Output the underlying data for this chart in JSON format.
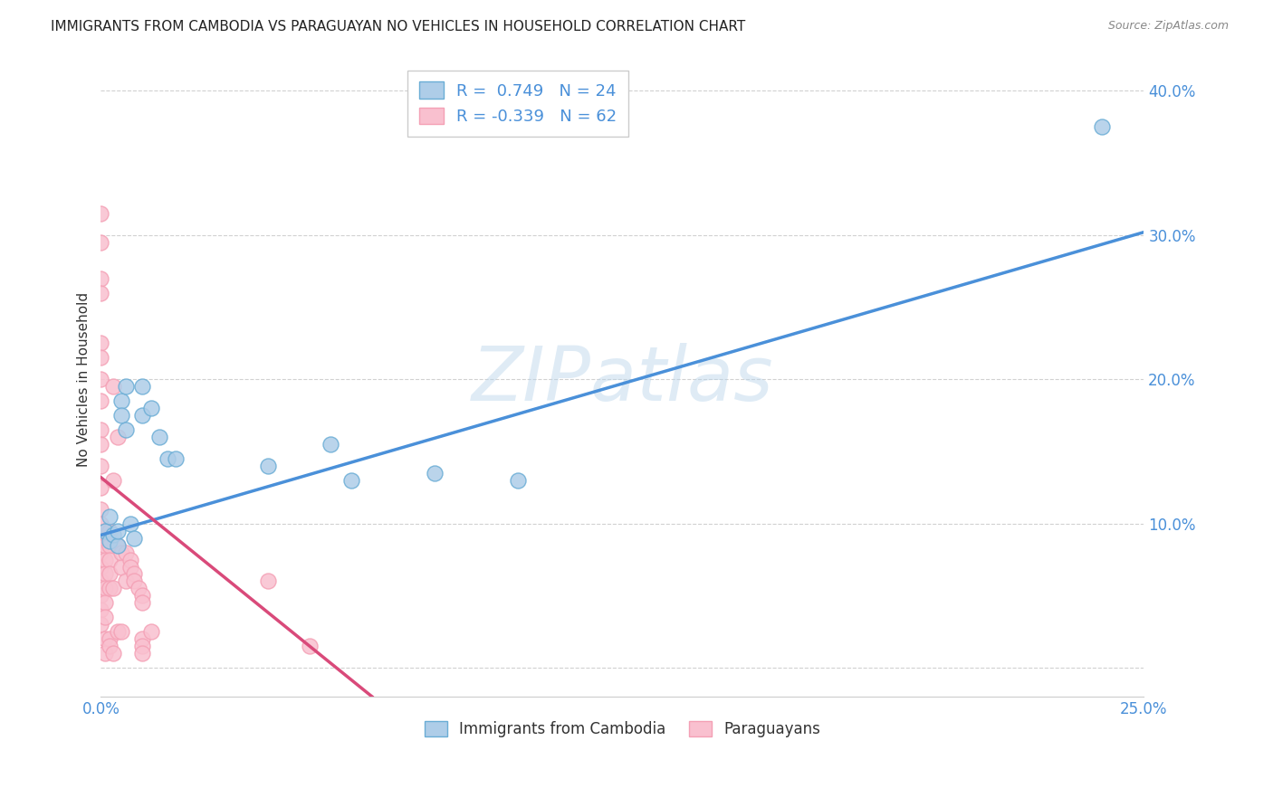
{
  "title": "IMMIGRANTS FROM CAMBODIA VS PARAGUAYAN NO VEHICLES IN HOUSEHOLD CORRELATION CHART",
  "source": "Source: ZipAtlas.com",
  "xlabel_blue": "Immigrants from Cambodia",
  "xlabel_pink": "Paraguayans",
  "ylabel": "No Vehicles in Household",
  "watermark": "ZIPatlas",
  "xlim": [
    0.0,
    0.25
  ],
  "ylim": [
    -0.02,
    0.42
  ],
  "xticks": [
    0.0,
    0.05,
    0.1,
    0.15,
    0.2,
    0.25
  ],
  "xtick_labels": [
    "0.0%",
    "",
    "",
    "",
    "",
    "25.0%"
  ],
  "yticks": [
    0.0,
    0.1,
    0.2,
    0.3,
    0.4
  ],
  "ytick_labels": [
    "",
    "10.0%",
    "20.0%",
    "30.0%",
    "40.0%"
  ],
  "blue_R": 0.749,
  "blue_N": 24,
  "pink_R": -0.339,
  "pink_N": 62,
  "blue_color": "#aecde8",
  "pink_color": "#f9c0cf",
  "blue_edge_color": "#6aadd5",
  "pink_edge_color": "#f4a0b5",
  "blue_line_color": "#4a90d9",
  "pink_line_color": "#d94a7a",
  "blue_scatter": [
    [
      0.001,
      0.095
    ],
    [
      0.002,
      0.105
    ],
    [
      0.002,
      0.088
    ],
    [
      0.003,
      0.092
    ],
    [
      0.004,
      0.085
    ],
    [
      0.004,
      0.095
    ],
    [
      0.005,
      0.185
    ],
    [
      0.005,
      0.175
    ],
    [
      0.006,
      0.165
    ],
    [
      0.006,
      0.195
    ],
    [
      0.007,
      0.1
    ],
    [
      0.008,
      0.09
    ],
    [
      0.01,
      0.195
    ],
    [
      0.01,
      0.175
    ],
    [
      0.012,
      0.18
    ],
    [
      0.014,
      0.16
    ],
    [
      0.016,
      0.145
    ],
    [
      0.018,
      0.145
    ],
    [
      0.04,
      0.14
    ],
    [
      0.055,
      0.155
    ],
    [
      0.06,
      0.13
    ],
    [
      0.08,
      0.135
    ],
    [
      0.1,
      0.13
    ],
    [
      0.24,
      0.375
    ]
  ],
  "pink_scatter": [
    [
      0.0,
      0.315
    ],
    [
      0.0,
      0.295
    ],
    [
      0.0,
      0.27
    ],
    [
      0.0,
      0.26
    ],
    [
      0.0,
      0.225
    ],
    [
      0.0,
      0.215
    ],
    [
      0.0,
      0.2
    ],
    [
      0.0,
      0.185
    ],
    [
      0.0,
      0.165
    ],
    [
      0.0,
      0.155
    ],
    [
      0.0,
      0.14
    ],
    [
      0.0,
      0.125
    ],
    [
      0.0,
      0.11
    ],
    [
      0.0,
      0.1
    ],
    [
      0.0,
      0.09
    ],
    [
      0.0,
      0.08
    ],
    [
      0.0,
      0.07
    ],
    [
      0.0,
      0.06
    ],
    [
      0.0,
      0.05
    ],
    [
      0.0,
      0.04
    ],
    [
      0.0,
      0.03
    ],
    [
      0.001,
      0.095
    ],
    [
      0.001,
      0.085
    ],
    [
      0.001,
      0.075
    ],
    [
      0.001,
      0.065
    ],
    [
      0.001,
      0.055
    ],
    [
      0.001,
      0.045
    ],
    [
      0.001,
      0.035
    ],
    [
      0.001,
      0.02
    ],
    [
      0.001,
      0.01
    ],
    [
      0.002,
      0.095
    ],
    [
      0.002,
      0.085
    ],
    [
      0.002,
      0.075
    ],
    [
      0.002,
      0.065
    ],
    [
      0.002,
      0.055
    ],
    [
      0.002,
      0.02
    ],
    [
      0.002,
      0.015
    ],
    [
      0.003,
      0.195
    ],
    [
      0.003,
      0.13
    ],
    [
      0.003,
      0.055
    ],
    [
      0.003,
      0.01
    ],
    [
      0.004,
      0.16
    ],
    [
      0.004,
      0.085
    ],
    [
      0.004,
      0.025
    ],
    [
      0.005,
      0.025
    ],
    [
      0.005,
      0.08
    ],
    [
      0.005,
      0.07
    ],
    [
      0.006,
      0.06
    ],
    [
      0.006,
      0.08
    ],
    [
      0.007,
      0.075
    ],
    [
      0.007,
      0.07
    ],
    [
      0.008,
      0.065
    ],
    [
      0.008,
      0.06
    ],
    [
      0.009,
      0.055
    ],
    [
      0.01,
      0.05
    ],
    [
      0.01,
      0.045
    ],
    [
      0.01,
      0.02
    ],
    [
      0.01,
      0.015
    ],
    [
      0.01,
      0.01
    ],
    [
      0.012,
      0.025
    ],
    [
      0.04,
      0.06
    ],
    [
      0.05,
      0.015
    ]
  ],
  "blue_trendline_x": [
    0.0,
    0.25
  ],
  "blue_trendline_y": [
    0.092,
    0.302
  ],
  "pink_trendline_x": [
    0.0,
    0.065
  ],
  "pink_trendline_y": [
    0.132,
    -0.02
  ]
}
